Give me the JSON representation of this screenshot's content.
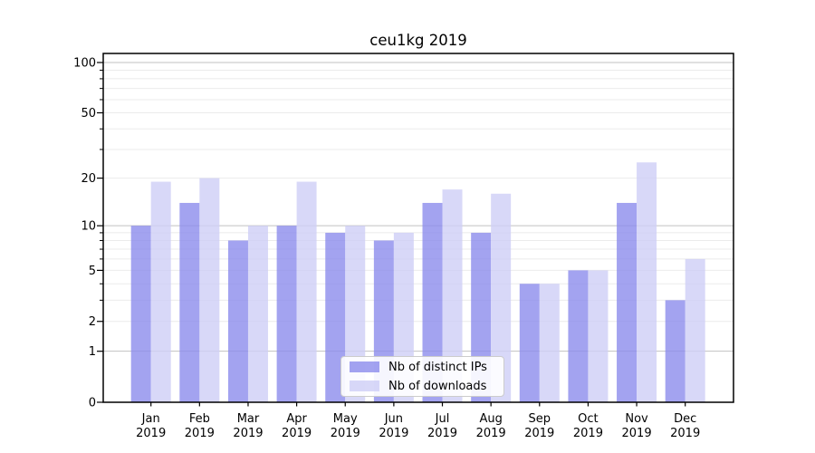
{
  "chart_data": {
    "type": "bar",
    "title": "ceu1kg 2019",
    "categories": [
      "Jan",
      "Feb",
      "Mar",
      "Apr",
      "May",
      "Jun",
      "Jul",
      "Aug",
      "Sep",
      "Oct",
      "Nov",
      "Dec"
    ],
    "year": "2019",
    "series": [
      {
        "name": "Nb of distinct IPs",
        "color": "#8c8cec",
        "values": [
          10,
          14,
          8,
          10,
          9,
          8,
          14,
          9,
          4,
          5,
          14,
          3
        ]
      },
      {
        "name": "Nb of downloads",
        "color": "#cecef6",
        "values": [
          19,
          20,
          10,
          19,
          10,
          9,
          17,
          16,
          4,
          5,
          25,
          6
        ]
      }
    ],
    "xlabel": "",
    "ylabel": "",
    "y_scale": "log1p",
    "ylim": [
      0,
      113
    ],
    "y_ticks": [
      0,
      1,
      2,
      5,
      10,
      20,
      50,
      100
    ],
    "y_minor_ticks": [
      3,
      4,
      6,
      7,
      8,
      9,
      30,
      40,
      60,
      70,
      80,
      90
    ],
    "grid": true,
    "legend_position": "lower center"
  },
  "colors": {
    "background": "#ffffff",
    "axis": "#000000",
    "grid_major": "#c2c2c2",
    "grid_minor": "#ebebeb",
    "bar_opacity": 0.8,
    "legend_border": "#cccccc"
  }
}
